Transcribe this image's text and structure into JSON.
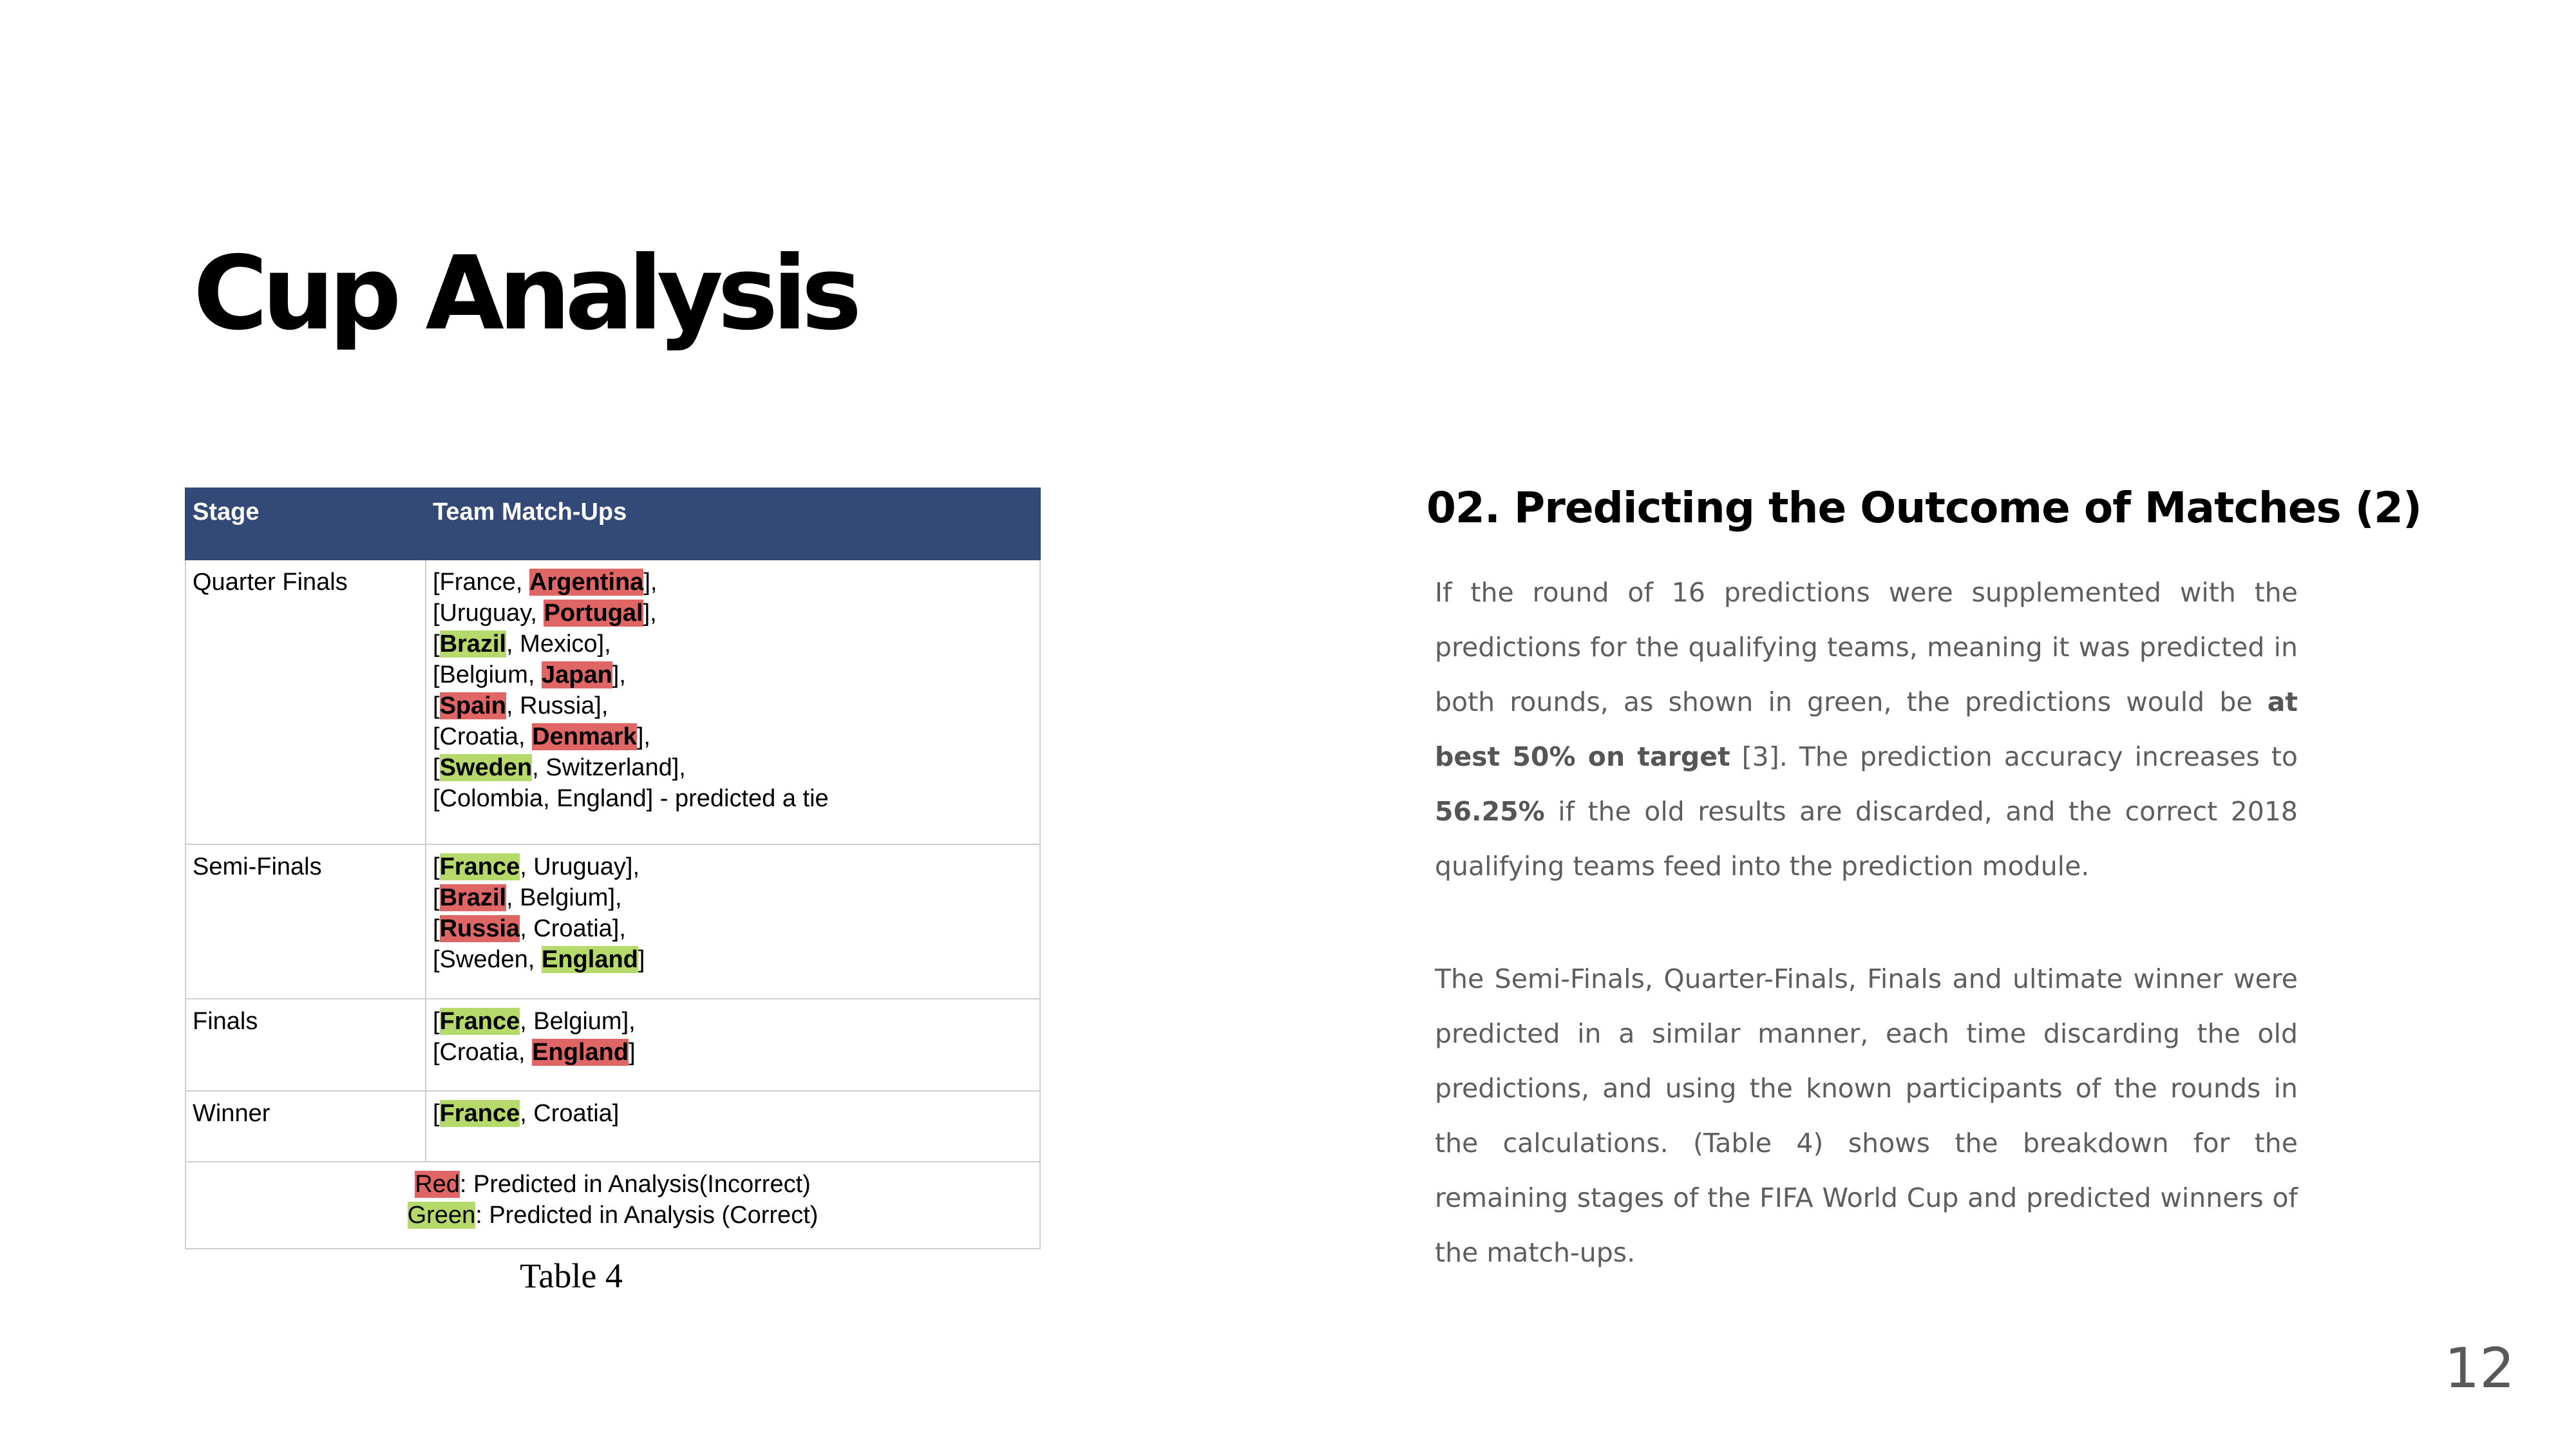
{
  "slide": {
    "title": "Cup Analysis",
    "page_number": "12"
  },
  "table": {
    "headers": {
      "stage": "Stage",
      "matchups": "Team Match-Ups"
    },
    "rows": [
      {
        "stage": "Quarter Finals",
        "lines": [
          [
            {
              "t": "[France, "
            },
            {
              "t": "Argentina",
              "hl": "red"
            },
            {
              "t": "],"
            }
          ],
          [
            {
              "t": "[Uruguay, "
            },
            {
              "t": "Portugal",
              "hl": "red"
            },
            {
              "t": "],"
            }
          ],
          [
            {
              "t": "["
            },
            {
              "t": "Brazil",
              "hl": "green"
            },
            {
              "t": ", Mexico],"
            }
          ],
          [
            {
              "t": "[Belgium, "
            },
            {
              "t": "Japan",
              "hl": "red"
            },
            {
              "t": "],"
            }
          ],
          [
            {
              "t": "["
            },
            {
              "t": "Spain",
              "hl": "red"
            },
            {
              "t": ", Russia],"
            }
          ],
          [
            {
              "t": "[Croatia, "
            },
            {
              "t": "Denmark",
              "hl": "red"
            },
            {
              "t": "],"
            }
          ],
          [
            {
              "t": "["
            },
            {
              "t": "Sweden",
              "hl": "green"
            },
            {
              "t": ", Switzerland],"
            }
          ],
          [
            {
              "t": "[Colombia, England] - predicted a tie"
            }
          ]
        ]
      },
      {
        "stage": "Semi-Finals",
        "lines": [
          [
            {
              "t": "["
            },
            {
              "t": "France",
              "hl": "green"
            },
            {
              "t": ", Uruguay],"
            }
          ],
          [
            {
              "t": "["
            },
            {
              "t": "Brazil",
              "hl": "red"
            },
            {
              "t": ", Belgium],"
            }
          ],
          [
            {
              "t": "["
            },
            {
              "t": "Russia",
              "hl": "red"
            },
            {
              "t": ", Croatia],"
            }
          ],
          [
            {
              "t": "[Sweden, "
            },
            {
              "t": "England",
              "hl": "green"
            },
            {
              "t": "]"
            }
          ]
        ]
      },
      {
        "stage": "Finals",
        "lines": [
          [
            {
              "t": "["
            },
            {
              "t": "France",
              "hl": "green"
            },
            {
              "t": ", Belgium],"
            }
          ],
          [
            {
              "t": "[Croatia, "
            },
            {
              "t": "England",
              "hl": "red"
            },
            {
              "t": "]"
            }
          ]
        ]
      },
      {
        "stage": "Winner",
        "lines": [
          [
            {
              "t": "["
            },
            {
              "t": "France",
              "hl": "green"
            },
            {
              "t": ", Croatia]"
            }
          ]
        ]
      }
    ],
    "legend": {
      "red_word": "Red",
      "red_text": ": Predicted in Analysis(Incorrect)",
      "green_word": "Green",
      "green_text": ": Predicted in Analysis (Correct)"
    },
    "caption": "Table 4"
  },
  "colors": {
    "header_bg": "#334a78",
    "incorrect_red": "#e06666",
    "correct_green": "#b6d96c"
  },
  "section": {
    "heading": "02. Predicting the Outcome of Matches (2)",
    "paragraph1": [
      {
        "t": "If the round of 16 predictions were supplemented with the predictions for the qualifying teams, meaning it was predicted in both rounds, as shown in green, the predictions would be "
      },
      {
        "t": "at best 50% on target",
        "b": true
      },
      {
        "t": " [3]. The prediction accuracy increases to "
      },
      {
        "t": "56.25%",
        "b": true
      },
      {
        "t": " if the old results are discarded, and the correct 2018 qualifying teams feed into the prediction module."
      }
    ],
    "paragraph2": "The Semi-Finals, Quarter-Finals, Finals and ultimate winner were predicted in a similar manner, each time discarding the old predictions, and using the known participants of the rounds in the calculations. (Table 4) shows the breakdown for the remaining stages of the FIFA World Cup and predicted winners of the match-ups."
  }
}
